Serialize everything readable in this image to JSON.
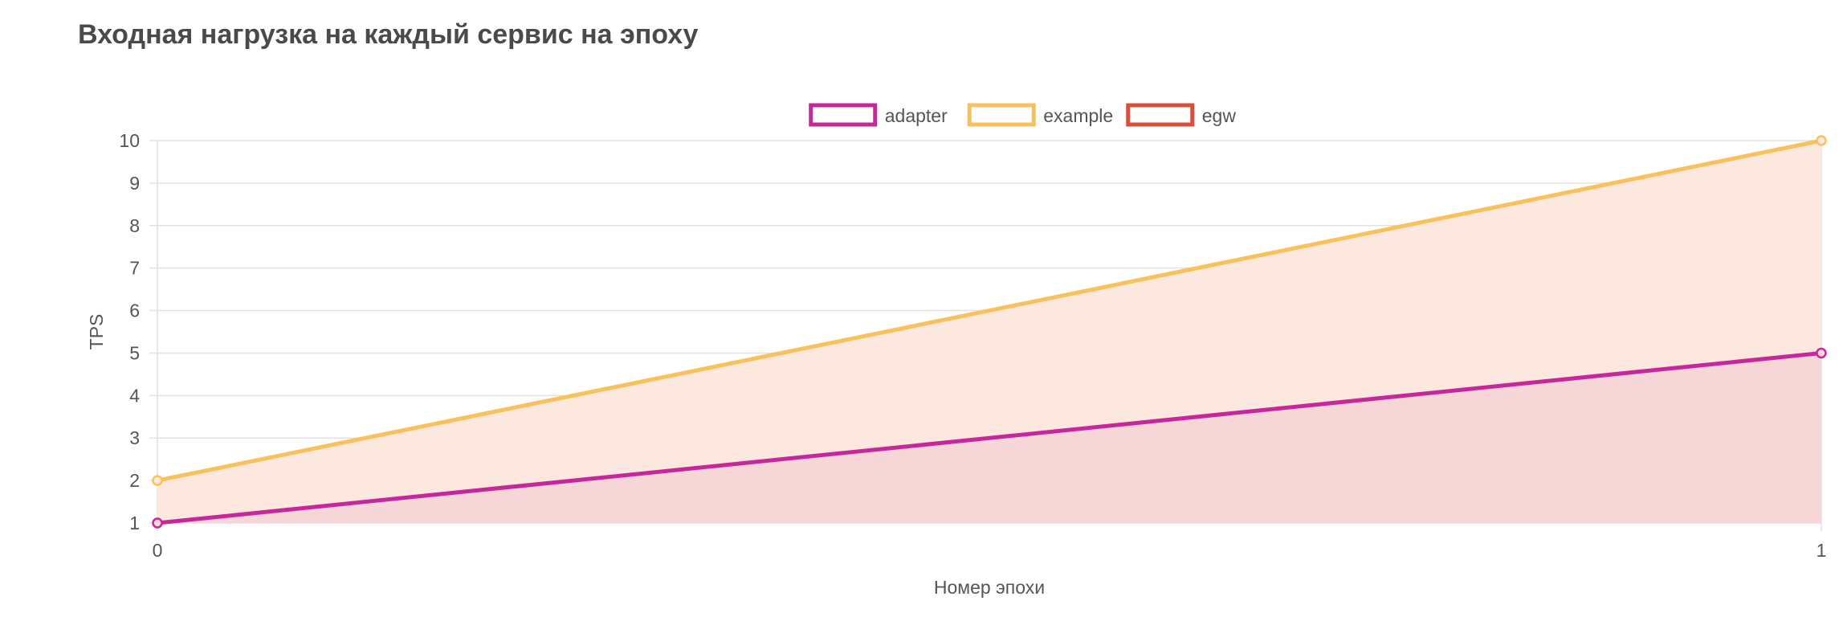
{
  "chart_data": {
    "type": "area",
    "title": "Входная нагрузка на каждый сервис на эпоху",
    "xlabel": "Номер эпохи",
    "ylabel": "TPS",
    "x": [
      0,
      1
    ],
    "xticks": [
      "0",
      "1"
    ],
    "yticks": [
      "1",
      "2",
      "3",
      "4",
      "5",
      "6",
      "7",
      "8",
      "9",
      "10"
    ],
    "ylim": [
      1,
      10
    ],
    "xlim": [
      0,
      1
    ],
    "grid": true,
    "legend_position": "top-center",
    "series": [
      {
        "name": "adapter",
        "values": [
          1,
          5
        ],
        "color": "#c6279a",
        "fill": "#f6d6d7"
      },
      {
        "name": "example",
        "values": [
          2,
          10
        ],
        "color": "#f8c15c",
        "fill": "#fce8de"
      },
      {
        "name": "egw",
        "values": [
          null,
          null
        ],
        "color": "#d8503c",
        "fill": "#f6d6d7"
      }
    ]
  }
}
